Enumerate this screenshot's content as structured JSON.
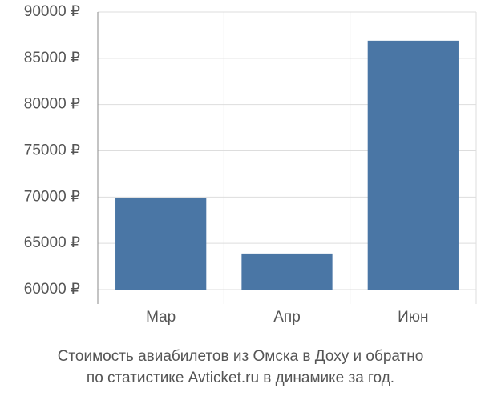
{
  "chart_data": {
    "type": "bar",
    "title": [
      "Стоимость авиабилетов из Омска в Доху и обратно",
      "по статистике Avticket.ru в динамике за год."
    ],
    "categories": [
      "Мар",
      "Апр",
      "Июн"
    ],
    "values": [
      69900,
      63900,
      86900
    ],
    "color": "#4a76a5",
    "ylim": [
      60000,
      90000
    ],
    "yticks": [
      {
        "value": 60000,
        "label": "60000 ₽"
      },
      {
        "value": 65000,
        "label": "65000 ₽"
      },
      {
        "value": 70000,
        "label": "70000 ₽"
      },
      {
        "value": 75000,
        "label": "75000 ₽"
      },
      {
        "value": 80000,
        "label": "80000 ₽"
      },
      {
        "value": 85000,
        "label": "85000 ₽"
      },
      {
        "value": 90000,
        "label": "90000 ₽"
      }
    ],
    "grid": true
  }
}
